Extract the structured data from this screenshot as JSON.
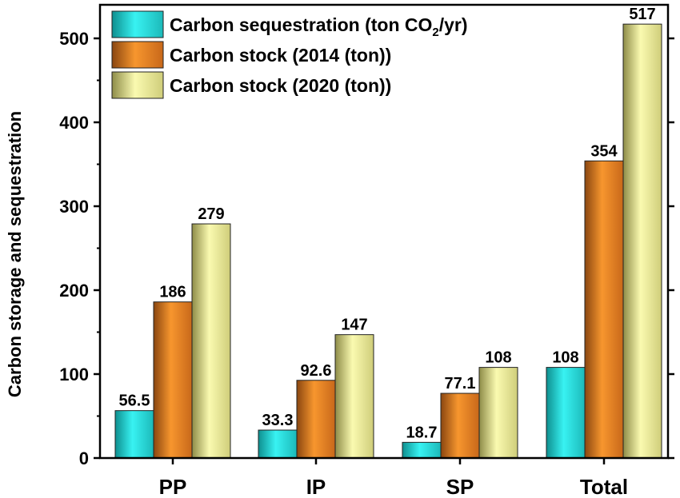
{
  "chart_data": {
    "type": "bar",
    "categories": [
      "PP",
      "IP",
      "SP",
      "Total"
    ],
    "series": [
      {
        "name": "Carbon sequestration (ton CO2/yr)",
        "values": [
          56.5,
          33.3,
          18.7,
          108
        ],
        "labels": [
          "56.5",
          "33.3",
          "18.7",
          "108"
        ],
        "color": "#2ee6e6"
      },
      {
        "name": "Carbon stock (2014 (ton))",
        "values": [
          186,
          92.6,
          77.1,
          354
        ],
        "labels": [
          "186",
          "92.6",
          "77.1",
          "354"
        ],
        "color": "#f08a24"
      },
      {
        "name": "Carbon stock (2020 (ton))",
        "values": [
          279,
          147,
          108,
          517
        ],
        "labels": [
          "279",
          "147",
          "108",
          "517"
        ],
        "color": "#f2f08c"
      }
    ],
    "legend_parts": [
      {
        "main": "Carbon sequestration (ton CO",
        "sub": "2",
        "tail": "/yr)"
      },
      {
        "main": "Carbon stock (2014 (ton))",
        "sub": "",
        "tail": ""
      },
      {
        "main": "Carbon stock (2020 (ton))",
        "sub": "",
        "tail": ""
      }
    ],
    "ylabel": "Carbon storage and sequestration",
    "xlabel": "",
    "yticks": [
      "0",
      "100",
      "200",
      "300",
      "400",
      "500"
    ],
    "ylim": [
      0,
      540
    ],
    "legend_position": "top-left",
    "grid": false
  }
}
